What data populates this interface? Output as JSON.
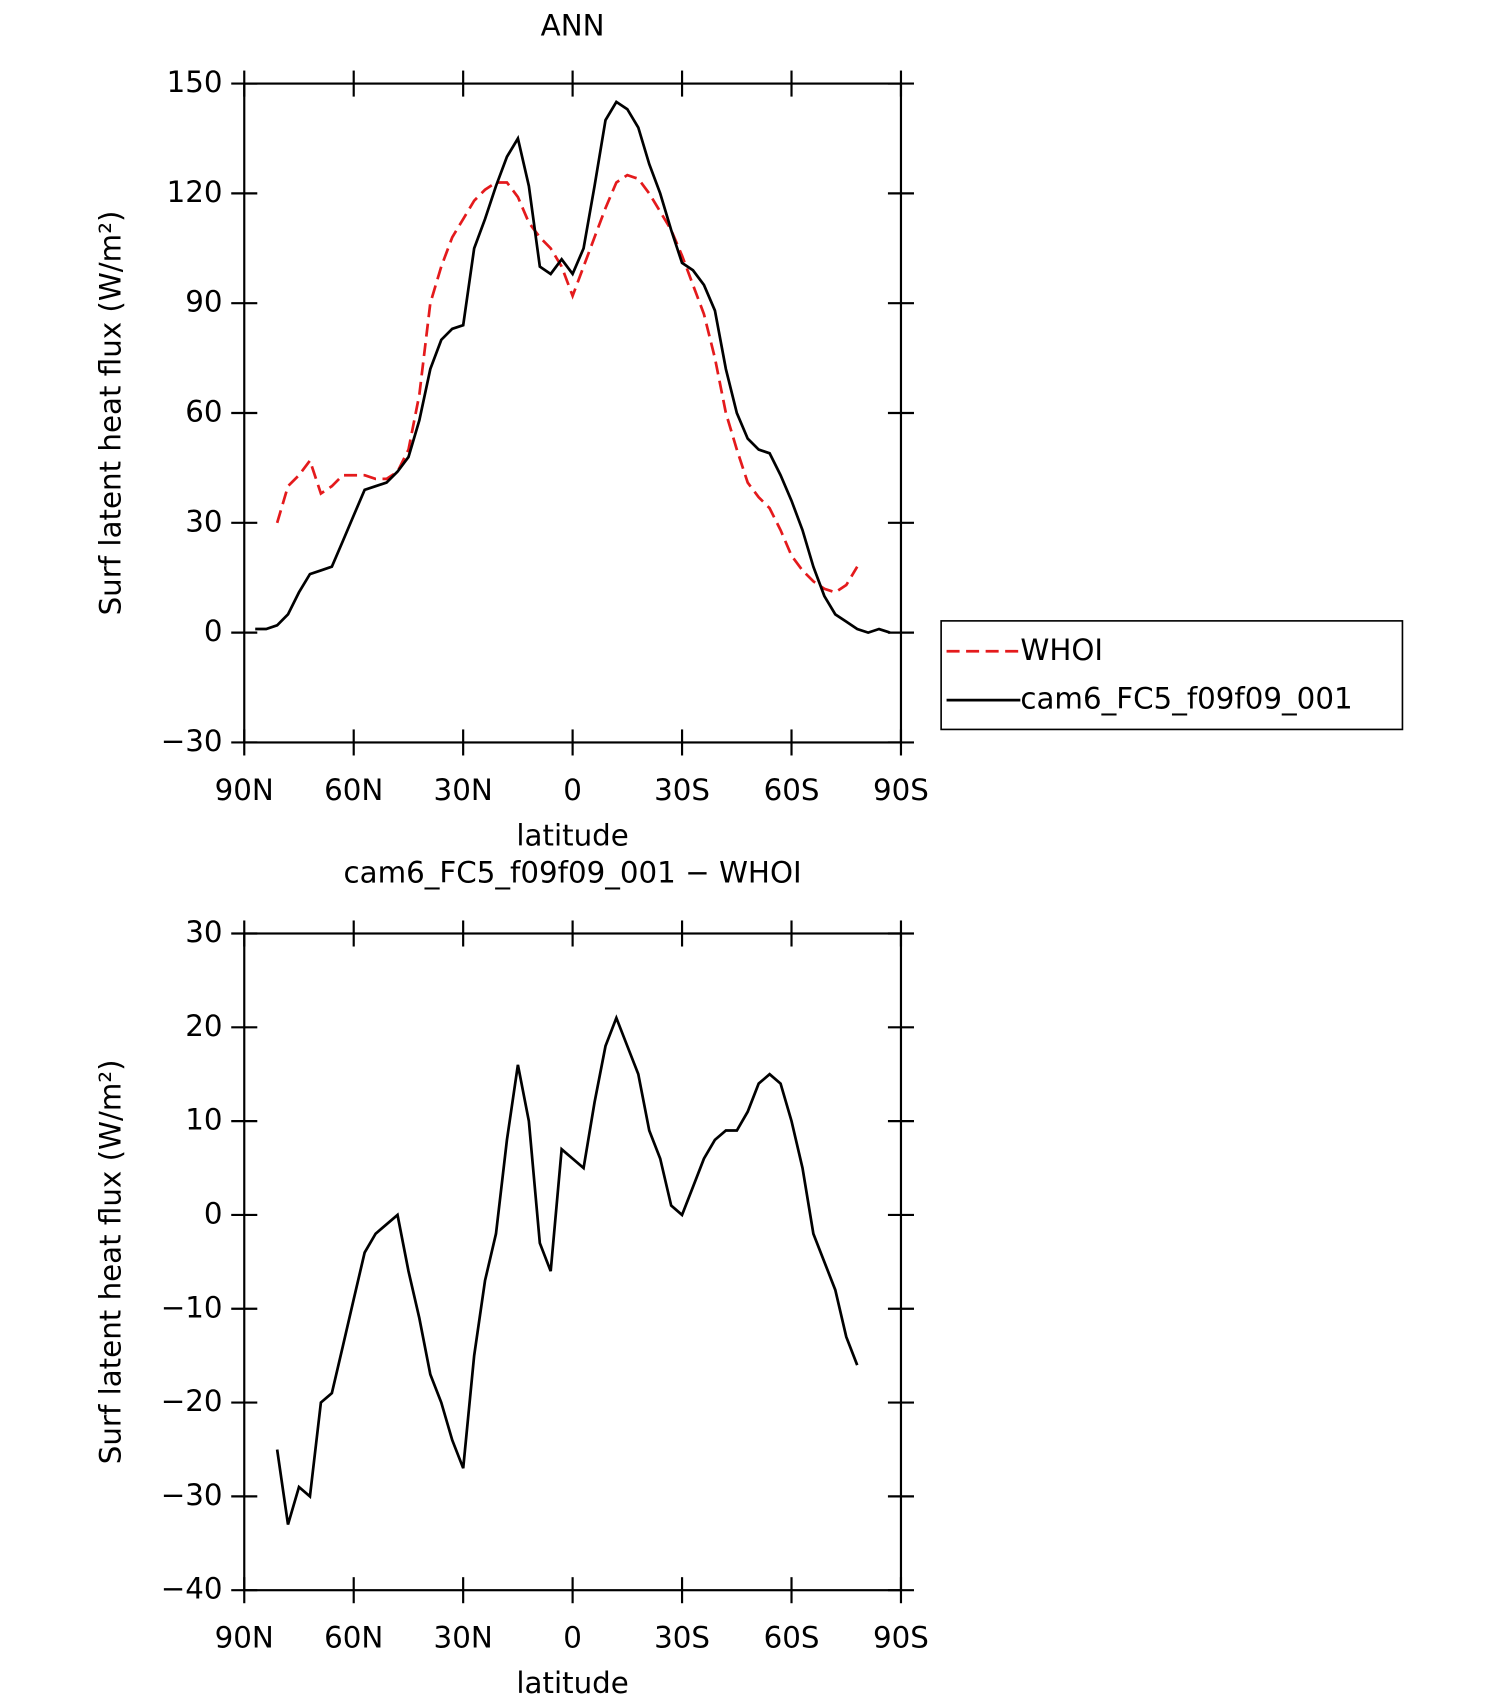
{
  "chart_data": [
    {
      "type": "line",
      "title": "ANN",
      "xlabel": "latitude",
      "ylabel": "Surf latent heat flux (W/m²)",
      "x": [
        87,
        84,
        81,
        78,
        75,
        72,
        69,
        66,
        63,
        60,
        57,
        54,
        51,
        48,
        45,
        42,
        39,
        36,
        33,
        30,
        27,
        24,
        21,
        18,
        15,
        12,
        9,
        6,
        3,
        0,
        -3,
        -6,
        -9,
        -12,
        -15,
        -18,
        -21,
        -24,
        -27,
        -30,
        -33,
        -36,
        -39,
        -42,
        -45,
        -48,
        -51,
        -54,
        -57,
        -60,
        -63,
        -66,
        -69,
        -72,
        -75,
        -78,
        -81,
        -84,
        -87
      ],
      "series": [
        {
          "name": "WHOI",
          "color": "#e41a1c",
          "dash": true,
          "values": [
            null,
            null,
            30,
            40,
            43,
            47,
            38,
            40,
            43,
            43,
            43,
            42,
            42,
            44,
            50,
            65,
            90,
            100,
            108,
            113,
            118,
            121,
            123,
            123,
            119,
            112,
            108,
            105,
            100,
            92,
            100,
            108,
            116,
            123,
            125,
            124,
            120,
            115,
            110,
            103,
            95,
            87,
            75,
            60,
            50,
            41,
            37,
            34,
            28,
            21,
            17,
            14,
            12,
            11,
            13,
            18,
            null,
            null,
            null
          ]
        },
        {
          "name": "cam6_FC5_f09f09_001",
          "color": "#000000",
          "dash": false,
          "values": [
            1,
            1,
            2,
            5,
            11,
            16,
            17,
            18,
            25,
            32,
            39,
            40,
            41,
            44,
            48,
            58,
            72,
            80,
            83,
            84,
            105,
            113,
            122,
            130,
            135,
            122,
            100,
            98,
            102,
            98,
            105,
            122,
            140,
            145,
            143,
            138,
            128,
            120,
            110,
            101,
            99,
            95,
            88,
            72,
            60,
            53,
            50,
            49,
            43,
            36,
            28,
            18,
            10,
            5,
            3,
            1,
            0,
            1,
            0
          ]
        }
      ],
      "xlim": [
        90,
        -90
      ],
      "xticks": [
        {
          "value": 90,
          "label": "90N"
        },
        {
          "value": 60,
          "label": "60N"
        },
        {
          "value": 30,
          "label": "30N"
        },
        0,
        {
          "value": -30,
          "label": "30S"
        },
        {
          "value": -60,
          "label": "60S"
        },
        {
          "value": -90,
          "label": "90S"
        }
      ],
      "ylim": [
        -30,
        150
      ],
      "yticks": [
        {
          "value": -30,
          "label": "−30"
        },
        0,
        30,
        60,
        90,
        120,
        150
      ],
      "legend": "right"
    },
    {
      "type": "line",
      "title": "cam6_FC5_f09f09_001 − WHOI",
      "xlabel": "latitude",
      "ylabel": "Surf latent heat flux (W/m²)",
      "x": [
        87,
        84,
        81,
        78,
        75,
        72,
        69,
        66,
        63,
        60,
        57,
        54,
        51,
        48,
        45,
        42,
        39,
        36,
        33,
        30,
        27,
        24,
        21,
        18,
        15,
        12,
        9,
        6,
        3,
        0,
        -3,
        -6,
        -9,
        -12,
        -15,
        -18,
        -21,
        -24,
        -27,
        -30,
        -33,
        -36,
        -39,
        -42,
        -45,
        -48,
        -51,
        -54,
        -57,
        -60,
        -63,
        -66,
        -69,
        -72,
        -75,
        -78,
        -81,
        -84,
        -87
      ],
      "series": [
        {
          "color": "#000000",
          "dash": false,
          "values": [
            null,
            null,
            -25,
            -33,
            -29,
            -30,
            -20,
            -19,
            -14,
            -9,
            -4,
            -2,
            -1,
            0,
            -6,
            -11,
            -17,
            -20,
            -24,
            -27,
            -15,
            -7,
            -2,
            8,
            16,
            10,
            -3,
            -6,
            7,
            6,
            5,
            12,
            18,
            21,
            18,
            15,
            9,
            6,
            1,
            0,
            3,
            6,
            8,
            9,
            9,
            11,
            14,
            15,
            14,
            10,
            5,
            -2,
            -5,
            -8,
            -13,
            -16,
            null,
            null,
            null
          ]
        }
      ],
      "xlim": [
        90,
        -90
      ],
      "xticks": [
        {
          "value": 90,
          "label": "90N"
        },
        {
          "value": 60,
          "label": "60N"
        },
        {
          "value": 30,
          "label": "30N"
        },
        0,
        {
          "value": -30,
          "label": "30S"
        },
        {
          "value": -60,
          "label": "60S"
        },
        {
          "value": -90,
          "label": "90S"
        }
      ],
      "ylim": [
        -40,
        30
      ],
      "yticks": [
        {
          "value": -40,
          "label": "−40"
        },
        {
          "value": -30,
          "label": "−30"
        },
        {
          "value": -20,
          "label": "−20"
        },
        {
          "value": -10,
          "label": "−10"
        },
        0,
        10,
        20,
        30
      ]
    }
  ]
}
